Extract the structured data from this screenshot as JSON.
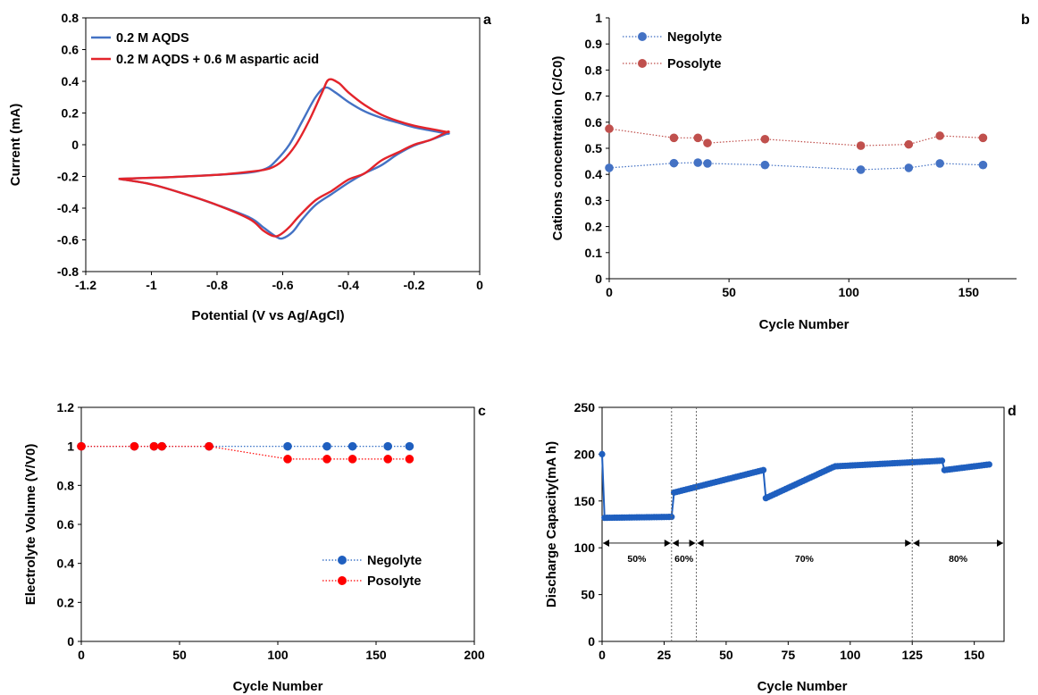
{
  "chart_data": [
    {
      "panel": "a",
      "type": "line",
      "xlabel": "Potential (V vs Ag/AgCl)",
      "ylabel": "Current (mA)",
      "xlim": [
        -1.2,
        0
      ],
      "ylim": [
        -0.8,
        0.8
      ],
      "xticks": [
        -1.2,
        -1.0,
        -0.8,
        -0.6,
        -0.4,
        -0.2,
        0
      ],
      "yticks": [
        -0.8,
        -0.6,
        -0.4,
        -0.2,
        0,
        0.2,
        0.4,
        0.6,
        0.8
      ],
      "x_tick_labels": [
        "-1.2",
        "-1",
        "-0.8",
        "-0.6",
        "-0.4",
        "-0.2",
        "0"
      ],
      "y_tick_labels": [
        "-0.8",
        "-0.6",
        "-0.4",
        "-0.2",
        "0",
        "0.2",
        "0.4",
        "0.6",
        "0.8"
      ],
      "legend_position": "top-left",
      "grid": false,
      "series": [
        {
          "name": "0.2 M AQDS",
          "color": "#4472C4",
          "x": [
            -1.1,
            -0.95,
            -0.8,
            -0.7,
            -0.65,
            -0.62,
            -0.58,
            -0.54,
            -0.5,
            -0.47,
            -0.44,
            -0.4,
            -0.35,
            -0.3,
            -0.25,
            -0.2,
            -0.15,
            -0.1,
            -0.1,
            -0.15,
            -0.2,
            -0.25,
            -0.3,
            -0.35,
            -0.4,
            -0.45,
            -0.5,
            -0.54,
            -0.57,
            -0.6,
            -0.62,
            -0.66,
            -0.7,
            -0.8,
            -0.9,
            -1.0,
            -1.1
          ],
          "y": [
            -0.215,
            -0.205,
            -0.19,
            -0.175,
            -0.15,
            -0.1,
            0.0,
            0.15,
            0.3,
            0.36,
            0.33,
            0.27,
            0.21,
            0.17,
            0.14,
            0.11,
            0.09,
            0.07,
            0.07,
            0.03,
            -0.005,
            -0.06,
            -0.13,
            -0.18,
            -0.24,
            -0.31,
            -0.38,
            -0.47,
            -0.55,
            -0.59,
            -0.58,
            -0.52,
            -0.46,
            -0.38,
            -0.31,
            -0.25,
            -0.215
          ]
        },
        {
          "name": "0.2 M AQDS + 0.6 M aspartic acid",
          "color": "#E3242B",
          "x": [
            -1.1,
            -0.95,
            -0.8,
            -0.7,
            -0.64,
            -0.6,
            -0.56,
            -0.52,
            -0.48,
            -0.46,
            -0.43,
            -0.4,
            -0.35,
            -0.3,
            -0.25,
            -0.2,
            -0.15,
            -0.1,
            -0.1,
            -0.15,
            -0.2,
            -0.25,
            -0.3,
            -0.35,
            -0.4,
            -0.45,
            -0.5,
            -0.55,
            -0.58,
            -0.61,
            -0.63,
            -0.66,
            -0.7,
            -0.8,
            -0.9,
            -1.0,
            -1.1
          ],
          "y": [
            -0.215,
            -0.205,
            -0.19,
            -0.17,
            -0.15,
            -0.1,
            0.0,
            0.15,
            0.33,
            0.41,
            0.39,
            0.33,
            0.25,
            0.19,
            0.15,
            0.12,
            0.1,
            0.08,
            0.08,
            0.03,
            0.0,
            -0.05,
            -0.1,
            -0.18,
            -0.22,
            -0.29,
            -0.35,
            -0.45,
            -0.52,
            -0.57,
            -0.575,
            -0.54,
            -0.47,
            -0.38,
            -0.31,
            -0.25,
            -0.215
          ]
        }
      ]
    },
    {
      "panel": "b",
      "type": "scatter",
      "xlabel": "Cycle Number",
      "ylabel": "Cations concentration (C/C0)",
      "xlim": [
        0,
        170
      ],
      "ylim": [
        0,
        1
      ],
      "xticks": [
        0,
        50,
        100,
        150
      ],
      "yticks": [
        0,
        0.1,
        0.2,
        0.3,
        0.4,
        0.5,
        0.6,
        0.7,
        0.8,
        0.9,
        1
      ],
      "x_tick_labels": [
        "0",
        "50",
        "100",
        "150"
      ],
      "y_tick_labels": [
        "0",
        "0.1",
        "0.2",
        "0.3",
        "0.4",
        "0.5",
        "0.6",
        "0.7",
        "0.8",
        "0.9",
        "1"
      ],
      "legend_position": "top-left",
      "grid": false,
      "series": [
        {
          "name": "Negolyte",
          "color": "#4472C4",
          "x": [
            0,
            27,
            37,
            41,
            65,
            105,
            125,
            138,
            156
          ],
          "y": [
            0.425,
            0.443,
            0.445,
            0.442,
            0.436,
            0.418,
            0.425,
            0.442,
            0.436
          ]
        },
        {
          "name": "Posolyte",
          "color": "#C0504D",
          "x": [
            0,
            27,
            37,
            41,
            65,
            105,
            125,
            138,
            156
          ],
          "y": [
            0.575,
            0.54,
            0.54,
            0.52,
            0.535,
            0.51,
            0.515,
            0.548,
            0.54
          ]
        }
      ]
    },
    {
      "panel": "c",
      "type": "scatter",
      "xlabel": "Cycle Number",
      "ylabel": "Electrolyte Volume (V/V0)",
      "xlim": [
        0,
        200
      ],
      "ylim": [
        0,
        1.2
      ],
      "xticks": [
        0,
        50,
        100,
        150,
        200
      ],
      "yticks": [
        0,
        0.2,
        0.4,
        0.6,
        0.8,
        1.0,
        1.2
      ],
      "x_tick_labels": [
        "0",
        "50",
        "100",
        "150",
        "200"
      ],
      "y_tick_labels": [
        "0",
        "0.2",
        "0.4",
        "0.6",
        "0.8",
        "1",
        "1.2"
      ],
      "legend_position": "bottom-right",
      "grid": false,
      "series": [
        {
          "name": "Negolyte",
          "color": "#1F5FBF",
          "x": [
            0,
            27,
            37,
            41,
            65,
            105,
            125,
            138,
            156,
            167
          ],
          "y": [
            1,
            1,
            1,
            1,
            1,
            1,
            1,
            1,
            1,
            1
          ]
        },
        {
          "name": "Posolyte",
          "color": "#FF0000",
          "x": [
            0,
            27,
            37,
            41,
            65,
            105,
            125,
            138,
            156,
            167
          ],
          "y": [
            1,
            1,
            1,
            1,
            1,
            0.935,
            0.935,
            0.935,
            0.935,
            0.935
          ]
        }
      ]
    },
    {
      "panel": "d",
      "type": "line",
      "xlabel": "Cycle Number",
      "ylabel": "Discharge Capacity(mA h)",
      "xlim": [
        0,
        162
      ],
      "ylim": [
        0,
        250
      ],
      "xticks": [
        0,
        25,
        50,
        75,
        100,
        125,
        150
      ],
      "yticks": [
        0,
        50,
        100,
        150,
        200,
        250
      ],
      "x_tick_labels": [
        "0",
        "25",
        "50",
        "75",
        "100",
        "125",
        "150"
      ],
      "y_tick_labels": [
        "0",
        "50",
        "100",
        "150",
        "200",
        "250"
      ],
      "grid": false,
      "color": "#1F5FBF",
      "segments": [
        {
          "x_start": 1,
          "x_end": 28,
          "y_start": 132,
          "y_end": 133
        },
        {
          "x_start": 29,
          "x_end": 65,
          "y_start": 159,
          "y_end": 183
        },
        {
          "x_start": 66,
          "x_end": 93,
          "y_start": 153,
          "y_end": 186
        },
        {
          "x_start": 94,
          "x_end": 137,
          "y_start": 187,
          "y_end": 193
        },
        {
          "x_start": 138,
          "x_end": 156,
          "y_start": 183,
          "y_end": 189
        }
      ],
      "first_point": {
        "x": 0,
        "y": 200
      },
      "dividers": [
        28,
        38,
        125
      ],
      "bands": [
        {
          "label": "50%",
          "from": 0,
          "to": 28
        },
        {
          "label": "60%",
          "from": 28,
          "to": 38
        },
        {
          "label": "70%",
          "from": 38,
          "to": 125
        },
        {
          "label": "80%",
          "from": 125,
          "to": 162
        }
      ]
    }
  ],
  "panel_letters": {
    "a": "a",
    "b": "b",
    "c": "c",
    "d": "d"
  }
}
